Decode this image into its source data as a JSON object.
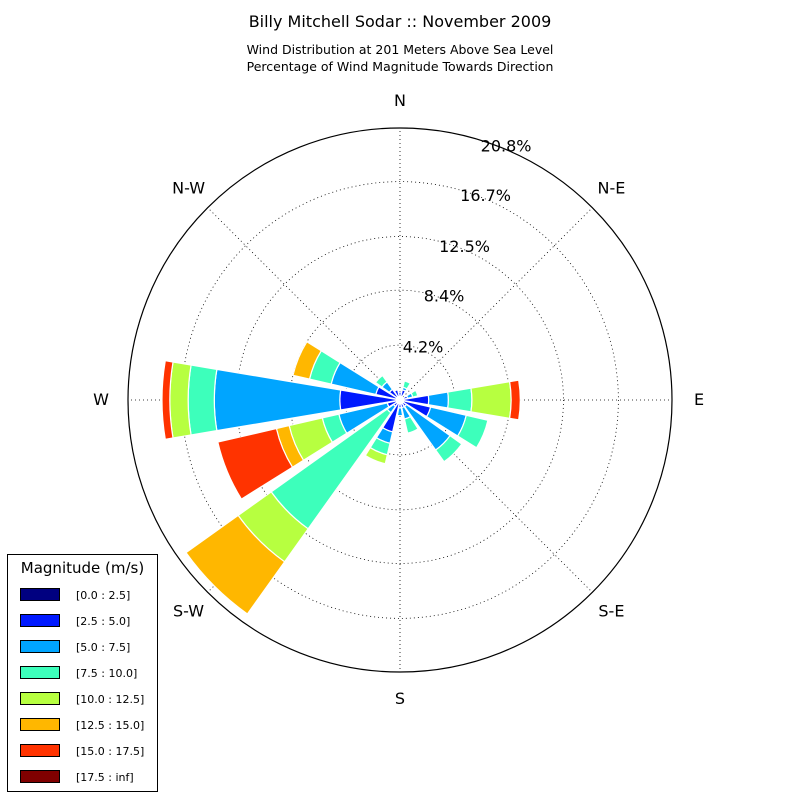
{
  "chart_data": {
    "type": "windrose",
    "title": "Billy Mitchell Sodar :: November 2009",
    "subtitle_lines": [
      "Wind Distribution at 201 Meters Above Sea Level",
      "Percentage of Wind Magnitude Towards Direction"
    ],
    "radial_ticks": [
      "4.2%",
      "8.4%",
      "12.5%",
      "16.7%",
      "20.8%"
    ],
    "radial_tick_values": [
      4.2,
      8.4,
      12.5,
      16.7,
      20.8
    ],
    "rmax": 20.8,
    "direction_labels": [
      "N",
      "N-E",
      "E",
      "S-E",
      "S",
      "S-W",
      "W",
      "N-W"
    ],
    "direction_angles": [
      0,
      45,
      90,
      135,
      180,
      225,
      270,
      315
    ],
    "legend_title": "Magnitude (m/s)",
    "bins": [
      "[0.0 : 2.5]",
      "[2.5 : 5.0]",
      "[5.0 : 7.5]",
      "[7.5 : 10.0]",
      "[10.0 : 12.5]",
      "[12.5 : 15.0]",
      "[15.0 : 17.5]",
      "[17.5 : inf]"
    ],
    "bin_colors": [
      "#000080",
      "#0019ff",
      "#00a5ff",
      "#3dffbb",
      "#b7ff40",
      "#ffb700",
      "#ff3300",
      "#800000"
    ],
    "sector_width_deg": 19,
    "sectors": [
      {
        "direction": 0,
        "cumulative": [
          0.3,
          0.6
        ]
      },
      {
        "direction": 22.5,
        "cumulative": [
          0.3,
          0.8,
          1.0,
          1.5
        ]
      },
      {
        "direction": 45,
        "cumulative": [
          0.3
        ]
      },
      {
        "direction": 67.5,
        "cumulative": [
          0.3,
          0.6,
          1.0,
          1.4
        ]
      },
      {
        "direction": 90,
        "cumulative": [
          0.3,
          2.2,
          3.7,
          5.5,
          8.5,
          8.5,
          9.2
        ]
      },
      {
        "direction": 112.5,
        "cumulative": [
          0.3,
          2.4,
          5.2,
          6.9
        ]
      },
      {
        "direction": 135,
        "cumulative": [
          0.3,
          0.6,
          4.7,
          5.8
        ]
      },
      {
        "direction": 157.5,
        "cumulative": [
          0.3,
          0.6,
          1.5,
          2.6
        ]
      },
      {
        "direction": 180,
        "cumulative": [
          0.3,
          0.6,
          1.2
        ]
      },
      {
        "direction": 202.5,
        "cumulative": [
          0.3,
          2.5,
          3.4,
          4.3,
          5.0
        ]
      },
      {
        "direction": 225,
        "cumulative": [
          0.3,
          0.6,
          1.2,
          12.1,
          15.2,
          20.1
        ]
      },
      {
        "direction": 247.5,
        "cumulative": [
          0.3,
          1.0,
          4.8,
          6.1,
          8.7,
          9.7,
          14.3
        ]
      },
      {
        "direction": 270,
        "cumulative": [
          0.3,
          4.6,
          14.2,
          16.2,
          17.6,
          17.6,
          18.2
        ]
      },
      {
        "direction": 292.5,
        "cumulative": [
          0.3,
          1.9,
          5.4,
          7.1,
          7.1,
          8.4
        ]
      },
      {
        "direction": 315,
        "cumulative": [
          0.3,
          1.0,
          1.7,
          2.3
        ]
      },
      {
        "direction": 337.5,
        "cumulative": [
          0.3,
          0.8
        ]
      }
    ]
  }
}
